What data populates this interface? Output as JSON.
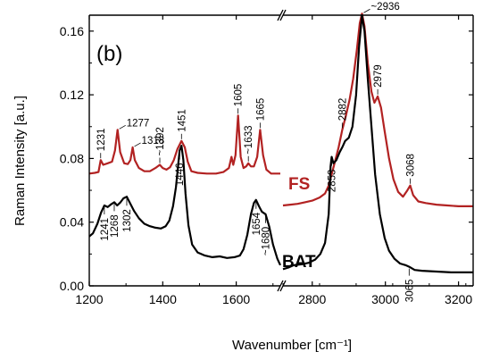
{
  "chart_data": {
    "type": "line",
    "panel_label": "(b)",
    "xlabel": "Wavenumber [cm⁻¹]",
    "ylabel": "Raman Intensity [a.u.]",
    "ylim": [
      0,
      0.17
    ],
    "x_segments": [
      {
        "xlim": [
          1200,
          1720
        ],
        "ticks": [
          1200,
          1400,
          1600
        ],
        "tick_labels": [
          "1200",
          "1400",
          "1600"
        ]
      },
      {
        "xlim": [
          2720,
          3240
        ],
        "ticks": [
          2800,
          3000,
          3200
        ],
        "tick_labels": [
          "2800",
          "3000",
          "3200"
        ]
      }
    ],
    "y_ticks": [
      0.0,
      0.04,
      0.08,
      0.12,
      0.16
    ],
    "y_tick_labels": [
      "0.00",
      "0.04",
      "0.08",
      "0.12",
      "0.16"
    ],
    "axis_break": true,
    "series": [
      {
        "name": "FS",
        "color": "#b22222",
        "segments": [
          [
            [
              1200,
              0.0705
            ],
            [
              1215,
              0.071
            ],
            [
              1225,
              0.0715
            ],
            [
              1231,
              0.079
            ],
            [
              1238,
              0.076
            ],
            [
              1250,
              0.077
            ],
            [
              1262,
              0.078
            ],
            [
              1270,
              0.085
            ],
            [
              1277,
              0.098
            ],
            [
              1284,
              0.084
            ],
            [
              1295,
              0.077
            ],
            [
              1305,
              0.0765
            ],
            [
              1312,
              0.079
            ],
            [
              1318,
              0.087
            ],
            [
              1324,
              0.079
            ],
            [
              1335,
              0.074
            ],
            [
              1350,
              0.072
            ],
            [
              1365,
              0.072
            ],
            [
              1380,
              0.074
            ],
            [
              1392,
              0.076
            ],
            [
              1400,
              0.074
            ],
            [
              1410,
              0.073
            ],
            [
              1420,
              0.0745
            ],
            [
              1430,
              0.079
            ],
            [
              1440,
              0.086
            ],
            [
              1451,
              0.091
            ],
            [
              1460,
              0.087
            ],
            [
              1468,
              0.078
            ],
            [
              1478,
              0.072
            ],
            [
              1495,
              0.071
            ],
            [
              1520,
              0.0705
            ],
            [
              1545,
              0.0705
            ],
            [
              1565,
              0.0715
            ],
            [
              1580,
              0.074
            ],
            [
              1587,
              0.081
            ],
            [
              1592,
              0.076
            ],
            [
              1598,
              0.082
            ],
            [
              1605,
              0.107
            ],
            [
              1612,
              0.081
            ],
            [
              1620,
              0.074
            ],
            [
              1627,
              0.075
            ],
            [
              1633,
              0.077
            ],
            [
              1640,
              0.075
            ],
            [
              1648,
              0.075
            ],
            [
              1657,
              0.081
            ],
            [
              1665,
              0.098
            ],
            [
              1673,
              0.082
            ],
            [
              1682,
              0.073
            ],
            [
              1695,
              0.0705
            ],
            [
              1720,
              0.0705
            ]
          ],
          [
            [
              2720,
              0.0505
            ],
            [
              2740,
              0.051
            ],
            [
              2760,
              0.0515
            ],
            [
              2780,
              0.0525
            ],
            [
              2800,
              0.0535
            ],
            [
              2820,
              0.0555
            ],
            [
              2835,
              0.058
            ],
            [
              2845,
              0.063
            ],
            [
              2853,
              0.07
            ],
            [
              2862,
              0.078
            ],
            [
              2872,
              0.087
            ],
            [
              2882,
              0.098
            ],
            [
              2892,
              0.107
            ],
            [
              2902,
              0.117
            ],
            [
              2912,
              0.13
            ],
            [
              2922,
              0.148
            ],
            [
              2930,
              0.165
            ],
            [
              2936,
              0.171
            ],
            [
              2943,
              0.163
            ],
            [
              2952,
              0.14
            ],
            [
              2962,
              0.122
            ],
            [
              2970,
              0.115
            ],
            [
              2979,
              0.119
            ],
            [
              2988,
              0.112
            ],
            [
              2998,
              0.097
            ],
            [
              3010,
              0.08
            ],
            [
              3022,
              0.067
            ],
            [
              3035,
              0.059
            ],
            [
              3048,
              0.056
            ],
            [
              3060,
              0.06
            ],
            [
              3068,
              0.063
            ],
            [
              3076,
              0.057
            ],
            [
              3090,
              0.053
            ],
            [
              3110,
              0.052
            ],
            [
              3140,
              0.051
            ],
            [
              3170,
              0.0505
            ],
            [
              3200,
              0.05
            ],
            [
              3240,
              0.05
            ]
          ]
        ]
      },
      {
        "name": "BAT",
        "color": "#000000",
        "segments": [
          [
            [
              1200,
              0.031
            ],
            [
              1210,
              0.033
            ],
            [
              1222,
              0.039
            ],
            [
              1232,
              0.046
            ],
            [
              1241,
              0.0505
            ],
            [
              1250,
              0.0495
            ],
            [
              1258,
              0.051
            ],
            [
              1268,
              0.0525
            ],
            [
              1276,
              0.0505
            ],
            [
              1285,
              0.0525
            ],
            [
              1293,
              0.055
            ],
            [
              1302,
              0.056
            ],
            [
              1312,
              0.0515
            ],
            [
              1322,
              0.047
            ],
            [
              1335,
              0.0425
            ],
            [
              1350,
              0.039
            ],
            [
              1365,
              0.0375
            ],
            [
              1380,
              0.0365
            ],
            [
              1395,
              0.036
            ],
            [
              1408,
              0.0375
            ],
            [
              1418,
              0.041
            ],
            [
              1428,
              0.05
            ],
            [
              1436,
              0.062
            ],
            [
              1442,
              0.076
            ],
            [
              1446,
              0.085
            ],
            [
              1451,
              0.088
            ],
            [
              1456,
              0.079
            ],
            [
              1462,
              0.058
            ],
            [
              1470,
              0.038
            ],
            [
              1480,
              0.026
            ],
            [
              1495,
              0.021
            ],
            [
              1515,
              0.019
            ],
            [
              1535,
              0.018
            ],
            [
              1555,
              0.0185
            ],
            [
              1575,
              0.0175
            ],
            [
              1595,
              0.018
            ],
            [
              1610,
              0.019
            ],
            [
              1620,
              0.023
            ],
            [
              1630,
              0.032
            ],
            [
              1640,
              0.045
            ],
            [
              1648,
              0.052
            ],
            [
              1654,
              0.054
            ],
            [
              1662,
              0.05
            ],
            [
              1670,
              0.0465
            ],
            [
              1680,
              0.045
            ],
            [
              1690,
              0.037
            ],
            [
              1700,
              0.026
            ],
            [
              1712,
              0.017
            ],
            [
              1720,
              0.013
            ]
          ],
          [
            [
              2720,
              0.0105
            ],
            [
              2735,
              0.0115
            ],
            [
              2750,
              0.013
            ],
            [
              2770,
              0.0135
            ],
            [
              2790,
              0.0145
            ],
            [
              2808,
              0.0165
            ],
            [
              2822,
              0.02
            ],
            [
              2835,
              0.027
            ],
            [
              2845,
              0.045
            ],
            [
              2850,
              0.075
            ],
            [
              2853,
              0.081
            ],
            [
              2858,
              0.077
            ],
            [
              2866,
              0.079
            ],
            [
              2875,
              0.084
            ],
            [
              2882,
              0.087
            ],
            [
              2890,
              0.091
            ],
            [
              2900,
              0.093
            ],
            [
              2910,
              0.1
            ],
            [
              2920,
              0.12
            ],
            [
              2928,
              0.15
            ],
            [
              2936,
              0.17
            ],
            [
              2943,
              0.16
            ],
            [
              2952,
              0.13
            ],
            [
              2962,
              0.1
            ],
            [
              2972,
              0.07
            ],
            [
              2985,
              0.045
            ],
            [
              2998,
              0.03
            ],
            [
              3010,
              0.022
            ],
            [
              3025,
              0.017
            ],
            [
              3040,
              0.014
            ],
            [
              3055,
              0.013
            ],
            [
              3065,
              0.012
            ],
            [
              3080,
              0.01
            ],
            [
              3100,
              0.0095
            ],
            [
              3140,
              0.009
            ],
            [
              3180,
              0.0085
            ],
            [
              3240,
              0.0085
            ]
          ]
        ]
      }
    ],
    "annotations": [
      {
        "text": "1231",
        "series": "FS",
        "x": 1231,
        "y": 0.079,
        "rotate": true
      },
      {
        "text": "1277",
        "series": "FS",
        "x": 1277,
        "y": 0.098,
        "rotate": false
      },
      {
        "text": "1318",
        "series": "FS",
        "x": 1318,
        "y": 0.087,
        "rotate": false
      },
      {
        "text": "~1392",
        "series": "FS",
        "x": 1392,
        "y": 0.076,
        "rotate": true
      },
      {
        "text": "1451",
        "series": "FS",
        "x": 1451,
        "y": 0.091,
        "rotate": true
      },
      {
        "text": "1605",
        "series": "FS",
        "x": 1605,
        "y": 0.107,
        "rotate": true
      },
      {
        "text": "~1633",
        "series": "FS",
        "x": 1633,
        "y": 0.077,
        "rotate": true
      },
      {
        "text": "1665",
        "series": "FS",
        "x": 1665,
        "y": 0.098,
        "rotate": true
      },
      {
        "text": "2882",
        "series": "FS",
        "x": 2882,
        "y": 0.098,
        "rotate": true
      },
      {
        "text": "~2936",
        "series": "FS",
        "x": 2936,
        "y": 0.171,
        "rotate": false
      },
      {
        "text": "2979",
        "series": "FS",
        "x": 2979,
        "y": 0.119,
        "rotate": true
      },
      {
        "text": "3068",
        "series": "FS",
        "x": 3068,
        "y": 0.063,
        "rotate": true
      },
      {
        "text": "1241",
        "series": "BAT",
        "x": 1241,
        "y": 0.0505,
        "rotate": true
      },
      {
        "text": "1268",
        "series": "BAT",
        "x": 1268,
        "y": 0.0525,
        "rotate": true
      },
      {
        "text": "1302",
        "series": "BAT",
        "x": 1302,
        "y": 0.056,
        "rotate": true
      },
      {
        "text": "1446",
        "series": "BAT",
        "x": 1446,
        "y": 0.085,
        "rotate": true
      },
      {
        "text": "1654",
        "series": "BAT",
        "x": 1654,
        "y": 0.054,
        "rotate": true
      },
      {
        "text": "~1680",
        "series": "BAT",
        "x": 1680,
        "y": 0.045,
        "rotate": true
      },
      {
        "text": "2853",
        "series": "BAT",
        "x": 2853,
        "y": 0.081,
        "rotate": true
      },
      {
        "text": "3065",
        "series": "BAT",
        "x": 3065,
        "y": 0.012,
        "rotate": true
      }
    ]
  }
}
